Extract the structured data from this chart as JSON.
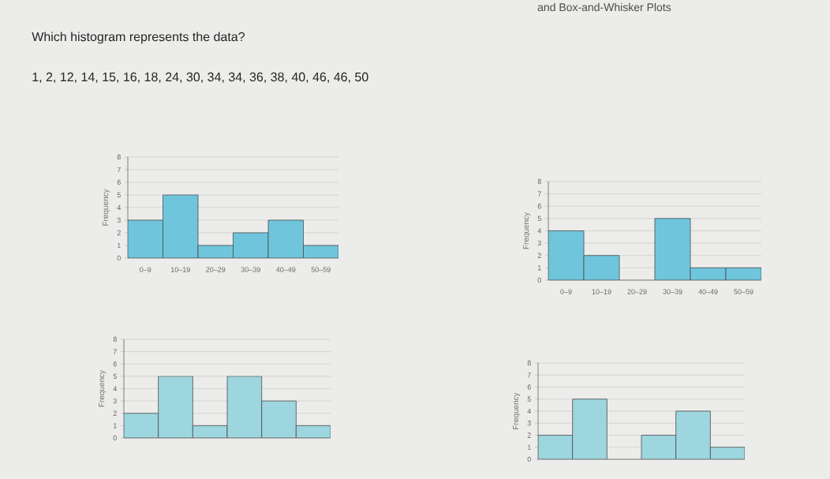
{
  "chart_data": [
    {
      "type": "other",
      "title": "Which histogram represents the data?",
      "subtitle": "1, 2, 12, 14, 15, 16, 18, 24, 30, 34, 34, 36, 38, 40, 46, 46, 50",
      "annotations": [
        "and Box-and-Whisker Plots"
      ]
    },
    {
      "type": "bar",
      "categories": [
        "0–9",
        "10–19",
        "20–29",
        "30–39",
        "40–49",
        "50–59"
      ],
      "values": [
        3,
        5,
        1,
        2,
        3,
        1
      ],
      "color": "#6fc6dc",
      "ylabel": "Frequency",
      "ylim": [
        0,
        8
      ],
      "yticks": [
        0,
        1,
        2,
        3,
        4,
        5,
        6,
        7,
        8
      ],
      "grid": "y"
    },
    {
      "type": "bar",
      "categories": [
        "0–9",
        "10–19",
        "20–29",
        "30–39",
        "40–49",
        "50–59"
      ],
      "values": [
        4,
        2,
        0,
        5,
        1,
        1
      ],
      "color": "#6fc6dc",
      "ylabel": "Frequency",
      "ylim": [
        0,
        8
      ],
      "yticks": [
        0,
        1,
        2,
        3,
        4,
        5,
        6,
        7,
        8
      ],
      "grid": "y"
    },
    {
      "type": "bar",
      "categories": [
        null,
        null,
        null,
        null,
        null,
        null
      ],
      "values": [
        2,
        5,
        1,
        5,
        3,
        1
      ],
      "color": "#9dd6df",
      "ylabel": "Frequency",
      "ylim": [
        0,
        8
      ],
      "yticks": [
        0,
        1,
        2,
        3,
        4,
        5,
        6,
        7,
        8
      ],
      "grid": "y",
      "tick_labels": "y"
    },
    {
      "type": "bar",
      "categories": [
        null,
        null,
        null,
        null,
        null,
        null
      ],
      "values": [
        2,
        5,
        0,
        2,
        4,
        1
      ],
      "color": "#9dd6df",
      "ylabel": "Frequency",
      "ylim": [
        0,
        8
      ],
      "yticks": [
        0,
        1,
        2,
        3,
        4,
        5,
        6,
        7,
        8
      ],
      "grid": "y",
      "tick_labels": "y"
    }
  ]
}
